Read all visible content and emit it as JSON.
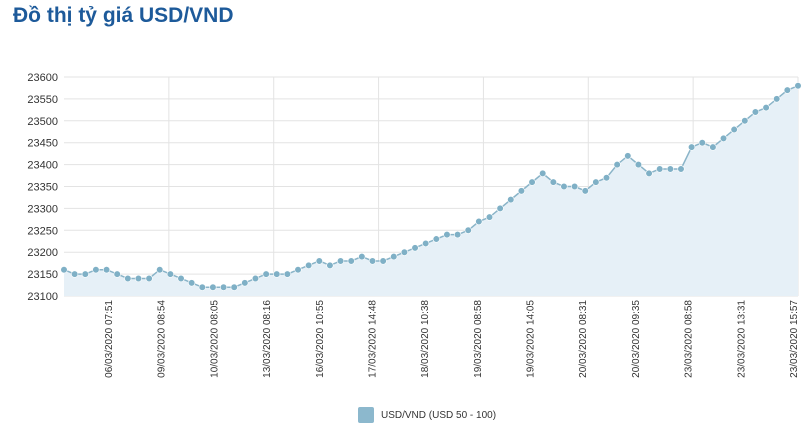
{
  "title": "Đồ thị tỷ giá USD/VND",
  "chart_data": {
    "type": "area",
    "title": "",
    "xlabel": "",
    "ylabel": "",
    "ylim": [
      23100,
      23600
    ],
    "yticks": [
      23100,
      23150,
      23200,
      23250,
      23300,
      23350,
      23400,
      23450,
      23500,
      23550,
      23600
    ],
    "grid": true,
    "legend_position": "bottom",
    "colors": {
      "line": "#8ab4c8",
      "marker": "#7fb0c6",
      "fill": "#e6f0f7",
      "grid": "#e3e3e3"
    },
    "x_labels": [
      "06/03/2020 07:51",
      "09/03/2020 08:54",
      "10/03/2020 08:05",
      "13/03/2020 08:16",
      "16/03/2020 10:55",
      "17/03/2020 14:48",
      "18/03/2020 10:38",
      "19/03/2020 08:58",
      "19/03/2020 14:05",
      "20/03/2020 08:31",
      "20/03/2020 09:35",
      "23/03/2020 08:58",
      "23/03/2020 13:31",
      "23/03/2020 15:57"
    ],
    "series": [
      {
        "name": "USD/VND (USD 50 - 100)",
        "values": [
          23160,
          23150,
          23150,
          23160,
          23160,
          23150,
          23140,
          23140,
          23140,
          23160,
          23150,
          23140,
          23130,
          23120,
          23120,
          23120,
          23120,
          23130,
          23140,
          23150,
          23150,
          23150,
          23160,
          23170,
          23180,
          23170,
          23180,
          23180,
          23190,
          23180,
          23180,
          23190,
          23200,
          23210,
          23220,
          23230,
          23240,
          23240,
          23250,
          23270,
          23280,
          23300,
          23320,
          23340,
          23360,
          23380,
          23360,
          23350,
          23350,
          23340,
          23360,
          23370,
          23400,
          23420,
          23400,
          23380,
          23390,
          23390,
          23390,
          23440,
          23450,
          23440,
          23460,
          23480,
          23500,
          23520,
          23530,
          23550,
          23570,
          23580
        ]
      }
    ]
  }
}
